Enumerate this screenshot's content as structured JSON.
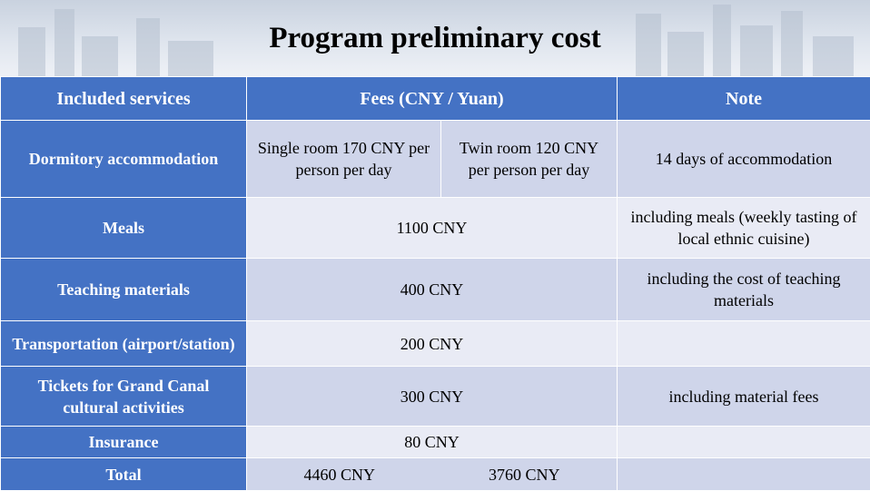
{
  "title": "Program preliminary cost",
  "headers": {
    "services": "Included services",
    "fees": "Fees (CNY / Yuan)",
    "note": "Note"
  },
  "rows": {
    "dormitory": {
      "service": "Dormitory accommodation",
      "fee_single": "Single room 170 CNY per person per day",
      "fee_twin": "Twin room 120 CNY per person per day",
      "note": "14 days of accommodation"
    },
    "meals": {
      "service": "Meals",
      "fee": "1100 CNY",
      "note": "including meals (weekly tasting of local ethnic cuisine)"
    },
    "teaching": {
      "service": "Teaching materials",
      "fee": "400 CNY",
      "note": "including the cost of teaching materials"
    },
    "transport": {
      "service": "Transportation (airport/station)",
      "fee": "200 CNY",
      "note": ""
    },
    "tickets": {
      "service": "Tickets for Grand Canal cultural activities",
      "fee": "300 CNY",
      "note": "including material fees"
    },
    "insurance": {
      "service": "Insurance",
      "fee": "80 CNY",
      "note": ""
    },
    "total": {
      "service": "Total",
      "fee_single": "4460 CNY",
      "fee_twin": "3760 CNY",
      "note": ""
    }
  },
  "colors": {
    "header_blue": "#4472c4",
    "row_dark": "#cfd5ea",
    "row_light": "#e9ebf5"
  }
}
